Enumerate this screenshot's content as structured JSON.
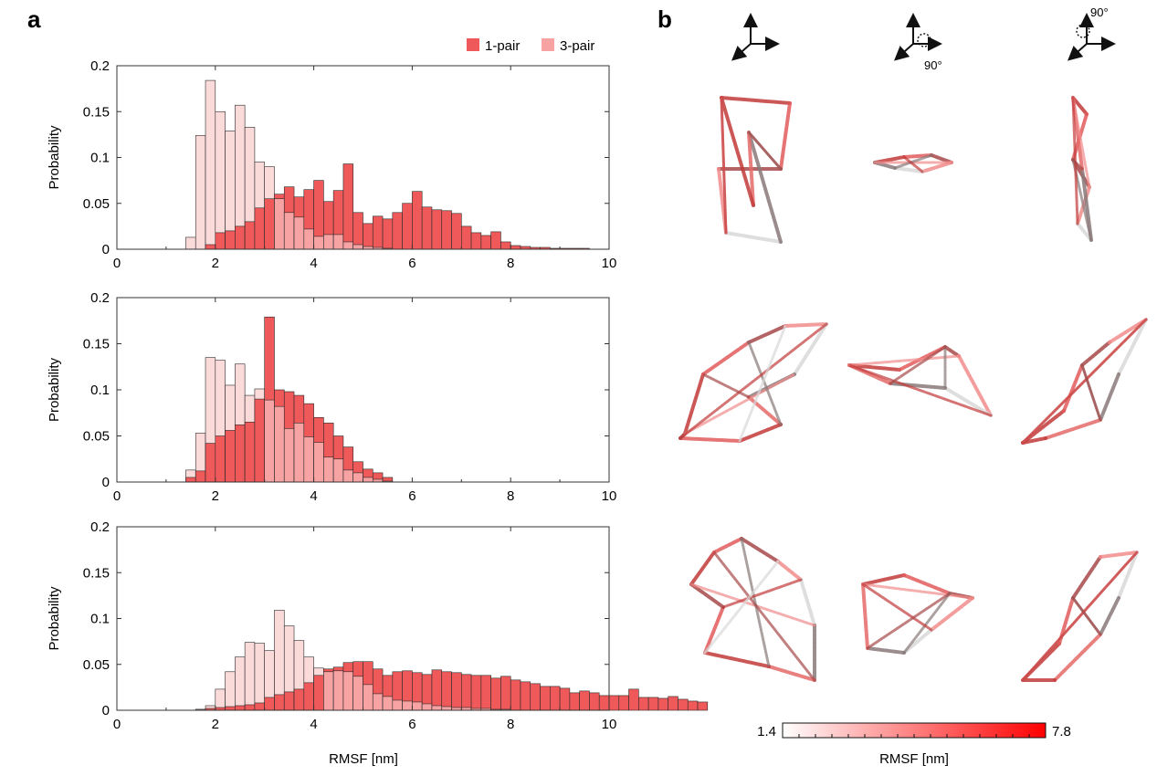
{
  "figure": {
    "panel_a_label": "a",
    "panel_b_label": "b"
  },
  "legend": {
    "items": [
      {
        "label": "1-pair",
        "color": "#f0595a"
      },
      {
        "label": "3-pair",
        "color": "#f7a3a3"
      }
    ],
    "placement": "top-right"
  },
  "colors": {
    "one_pair": "#f0595a",
    "three_pair": "#f7a3a3",
    "three_pair_behind": "#fbdada",
    "axis": "#333333"
  },
  "chart_data": [
    {
      "type": "bar",
      "subtype": "histogram-overlay",
      "panel": "a-top",
      "xlabel": "",
      "ylabel": "Probability",
      "xlim": [
        0,
        10
      ],
      "ylim": [
        0,
        0.2
      ],
      "xticks": [
        "0",
        "2",
        "4",
        "6",
        "8",
        "10"
      ],
      "yticks": [
        "0",
        "0.05",
        "0.1",
        "0.15",
        "0.2"
      ],
      "bin_width": 0.2,
      "bin_start": 1.4,
      "series": [
        {
          "name": "1-pair",
          "values": [
            0,
            0,
            0.005,
            0.018,
            0.02,
            0.025,
            0.03,
            0.045,
            0.055,
            0.06,
            0.068,
            0.057,
            0.065,
            0.075,
            0.052,
            0.064,
            0.093,
            0.04,
            0.028,
            0.036,
            0.033,
            0.04,
            0.05,
            0.063,
            0.046,
            0.043,
            0.042,
            0.039,
            0.025,
            0.018,
            0.015,
            0.019,
            0.008,
            0.004,
            0.003,
            0.002,
            0.002,
            0.001,
            0.001,
            0.001,
            0.001
          ]
        },
        {
          "name": "3-pair",
          "values": [
            0.013,
            0.124,
            0.184,
            0.15,
            0.129,
            0.157,
            0.133,
            0.095,
            0.09,
            0.055,
            0.04,
            0.035,
            0.022,
            0.014,
            0.016,
            0.016,
            0.008,
            0.005,
            0.003,
            0.002,
            0.001,
            0,
            0,
            0,
            0,
            0,
            0,
            0,
            0,
            0,
            0,
            0,
            0,
            0,
            0,
            0,
            0,
            0,
            0,
            0,
            0
          ]
        }
      ]
    },
    {
      "type": "bar",
      "subtype": "histogram-overlay",
      "panel": "a-middle",
      "xlabel": "",
      "ylabel": "Probability",
      "xlim": [
        0,
        10
      ],
      "ylim": [
        0,
        0.2
      ],
      "xticks": [
        "0",
        "2",
        "4",
        "6",
        "8",
        "10"
      ],
      "yticks": [
        "0",
        "0.05",
        "0.1",
        "0.15",
        "0.2"
      ],
      "bin_width": 0.2,
      "bin_start": 1.4,
      "series": [
        {
          "name": "1-pair",
          "values": [
            0.005,
            0.012,
            0.042,
            0.05,
            0.056,
            0.062,
            0.065,
            0.09,
            0.179,
            0.1,
            0.098,
            0.094,
            0.085,
            0.07,
            0.064,
            0.05,
            0.038,
            0.022,
            0.014,
            0.01,
            0.005,
            0,
            0,
            0,
            0,
            0,
            0,
            0,
            0,
            0,
            0,
            0,
            0,
            0,
            0,
            0,
            0,
            0,
            0,
            0,
            0
          ]
        },
        {
          "name": "3-pair",
          "values": [
            0.013,
            0.053,
            0.135,
            0.132,
            0.105,
            0.128,
            0.094,
            0.101,
            0.089,
            0.082,
            0.058,
            0.064,
            0.049,
            0.043,
            0.027,
            0.025,
            0.013,
            0.01,
            0.005,
            0.003,
            0.001,
            0,
            0,
            0,
            0,
            0,
            0,
            0,
            0,
            0,
            0,
            0,
            0,
            0,
            0,
            0,
            0,
            0,
            0,
            0,
            0
          ]
        }
      ]
    },
    {
      "type": "bar",
      "subtype": "histogram-overlay",
      "panel": "a-bottom",
      "xlabel": "RMSF [nm]",
      "ylabel": "Probability",
      "xlim": [
        0,
        10
      ],
      "ylim": [
        0,
        0.2
      ],
      "xticks": [
        "0",
        "2",
        "4",
        "6",
        "8",
        "10"
      ],
      "yticks": [
        "0",
        "0.05",
        "0.1",
        "0.15",
        "0.2"
      ],
      "bin_width": 0.2,
      "bin_start": 1.6,
      "series": [
        {
          "name": "1-pair",
          "values": [
            0.001,
            0.002,
            0.003,
            0.004,
            0.005,
            0.006,
            0.008,
            0.014,
            0.017,
            0.02,
            0.023,
            0.03,
            0.038,
            0.045,
            0.047,
            0.052,
            0.053,
            0.053,
            0.045,
            0.038,
            0.042,
            0.043,
            0.041,
            0.039,
            0.044,
            0.042,
            0.041,
            0.039,
            0.038,
            0.038,
            0.035,
            0.037,
            0.033,
            0.031,
            0.029,
            0.026,
            0.026,
            0.024,
            0.019,
            0.021,
            0.019,
            0.016,
            0.016,
            0.016,
            0.023,
            0.014,
            0.014,
            0.013,
            0.015,
            0.012,
            0.01,
            0.009
          ]
        },
        {
          "name": "3-pair",
          "values": [
            0.001,
            0.005,
            0.023,
            0.042,
            0.058,
            0.074,
            0.073,
            0.065,
            0.109,
            0.092,
            0.076,
            0.058,
            0.046,
            0.042,
            0.043,
            0.042,
            0.037,
            0.028,
            0.018,
            0.015,
            0.011,
            0.01,
            0.009,
            0.007,
            0.005,
            0.004,
            0.003,
            0.003,
            0.002,
            0.002,
            0.001,
            0.001,
            0,
            0,
            0,
            0,
            0,
            0,
            0,
            0,
            0,
            0,
            0,
            0,
            0,
            0,
            0,
            0,
            0,
            0,
            0,
            0
          ]
        }
      ]
    }
  ],
  "panel_b": {
    "view_labels": [
      "",
      "90°",
      "90°"
    ],
    "colorbar": {
      "min_label": "1.4",
      "max_label": "7.8",
      "label": "RMSF [nm]",
      "color_low": "#ffffff",
      "color_high": "#ff0000"
    },
    "structures_icon": "dna-origami-wireframe-icon"
  }
}
